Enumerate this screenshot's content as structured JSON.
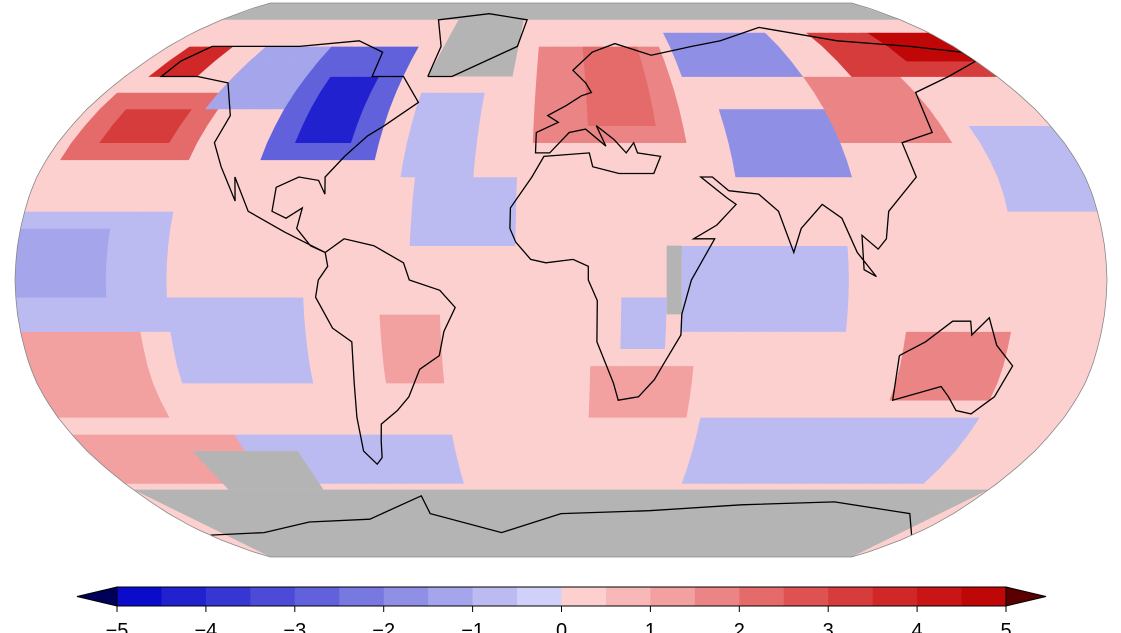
{
  "map": {
    "projection": "robinson",
    "missing_color": "#b4b4b4",
    "coastline_color": "#000000",
    "anomaly_regions": [
      {
        "lon": [
          -180,
          180
        ],
        "lat": [
          -90,
          90
        ],
        "value": 0.3
      },
      {
        "lon": [
          -180,
          -130
        ],
        "lat": [
          -15,
          20
        ],
        "value": -0.8
      },
      {
        "lon": [
          -180,
          -150
        ],
        "lat": [
          -5,
          15
        ],
        "value": -1.2
      },
      {
        "lon": [
          -130,
          -85
        ],
        "lat": [
          -30,
          -5
        ],
        "value": -0.8
      },
      {
        "lon": [
          -175,
          -130
        ],
        "lat": [
          35,
          55
        ],
        "value": 2.3
      },
      {
        "lon": [
          -165,
          -140
        ],
        "lat": [
          40,
          50
        ],
        "value": 3.0
      },
      {
        "lon": [
          -170,
          -150
        ],
        "lat": [
          62,
          72
        ],
        "value": 3.5
      },
      {
        "lon": [
          -135,
          -105
        ],
        "lat": [
          50,
          72
        ],
        "value": -1.5
      },
      {
        "lon": [
          -105,
          -65
        ],
        "lat": [
          35,
          68
        ],
        "value": -2.8
      },
      {
        "lon": [
          -95,
          -75
        ],
        "lat": [
          40,
          58
        ],
        "value": -4.2
      },
      {
        "lon": [
          -55,
          -30
        ],
        "lat": [
          30,
          55
        ],
        "value": -0.8
      },
      {
        "lon": [
          -50,
          -15
        ],
        "lat": [
          10,
          30
        ],
        "value": -0.6
      },
      {
        "lon": [
          -180,
          -140
        ],
        "lat": [
          -40,
          -15
        ],
        "value": 1.3
      },
      {
        "lon": [
          -60,
          -40
        ],
        "lat": [
          -30,
          -12
        ],
        "value": 1.3
      },
      {
        "lon": [
          -120,
          -40
        ],
        "lat": [
          -62,
          -45
        ],
        "value": -0.9
      },
      {
        "lon": [
          -10,
          45
        ],
        "lat": [
          40,
          72
        ],
        "value": 1.8
      },
      {
        "lon": [
          10,
          35
        ],
        "lat": [
          45,
          70
        ],
        "value": 2.4
      },
      {
        "lon": [
          50,
          100
        ],
        "lat": [
          60,
          76
        ],
        "value": -2.0
      },
      {
        "lon": [
          60,
          100
        ],
        "lat": [
          30,
          50
        ],
        "value": -1.6
      },
      {
        "lon": [
          100,
          140
        ],
        "lat": [
          40,
          58
        ],
        "value": 1.8
      },
      {
        "lon": [
          120,
          180
        ],
        "lat": [
          60,
          76
        ],
        "value": 3.3
      },
      {
        "lon": [
          150,
          180
        ],
        "lat": [
          65,
          76
        ],
        "value": 4.6
      },
      {
        "lon": [
          150,
          180
        ],
        "lat": [
          20,
          45
        ],
        "value": -0.6
      },
      {
        "lon": [
          40,
          95
        ],
        "lat": [
          -15,
          10
        ],
        "value": -0.7
      },
      {
        "lon": [
          10,
          45
        ],
        "lat": [
          -42,
          -25
        ],
        "value": 1.4
      },
      {
        "lon": [
          50,
          150
        ],
        "lat": [
          -60,
          -42
        ],
        "value": -0.8
      },
      {
        "lon": [
          115,
          150
        ],
        "lat": [
          -35,
          -15
        ],
        "value": 1.7
      },
      {
        "lon": [
          20,
          35
        ],
        "lat": [
          -20,
          -5
        ],
        "value": -0.6
      },
      {
        "lon": [
          -180,
          -120
        ],
        "lat": [
          -60,
          -45
        ],
        "value": 1.0
      }
    ],
    "missing_regions": [
      {
        "lon": [
          -180,
          180
        ],
        "lat": [
          80,
          90
        ]
      },
      {
        "lon": [
          -180,
          180
        ],
        "lat": [
          -90,
          -62
        ]
      },
      {
        "lon": [
          -55,
          -20
        ],
        "lat": [
          60,
          82
        ]
      },
      {
        "lon": [
          -140,
          -100
        ],
        "lat": [
          -62,
          -50
        ]
      },
      {
        "lon": [
          35,
          40
        ],
        "lat": [
          -10,
          10
        ]
      }
    ]
  },
  "colorbar": {
    "min": -5,
    "max": 5,
    "step": 0.5,
    "extend": "both",
    "ticks": [
      "−5",
      "−4",
      "−3",
      "−2",
      "−1",
      "0",
      "1",
      "2",
      "3",
      "4",
      "5"
    ],
    "colors": [
      "#0b0bcb",
      "#2121cf",
      "#3636d3",
      "#4b4bd7",
      "#6161dc",
      "#7878e1",
      "#8f8fe6",
      "#a5a5eb",
      "#bbbbf2",
      "#d0d0f9",
      "#fdd0d0",
      "#f8b8b8",
      "#f2a0a0",
      "#eb8585",
      "#e56b6b",
      "#de5252",
      "#d73c3c",
      "#d02828",
      "#c91515",
      "#c00707"
    ],
    "under_color": "#00005a",
    "over_color": "#5a0000"
  }
}
